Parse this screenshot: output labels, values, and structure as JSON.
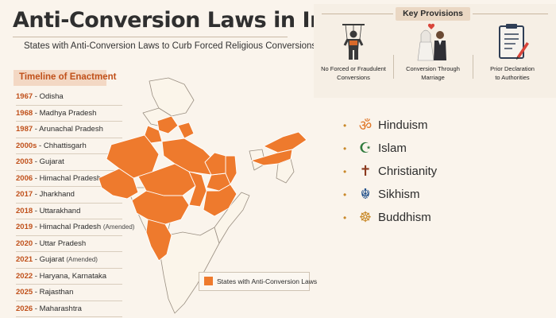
{
  "header": {
    "title": "Anti-Conversion Laws in India",
    "subtitle": "States with Anti-Conversion Laws to Curb Forced Religious Conversions"
  },
  "timeline": {
    "heading": "Timeline of Enactment",
    "entries": [
      {
        "year": "1967",
        "state": "Odisha",
        "note": ""
      },
      {
        "year": "1968",
        "state": "Madhya Pradesh",
        "note": ""
      },
      {
        "year": "1987",
        "state": "Arunachal Pradesh",
        "note": ""
      },
      {
        "year": "2000s",
        "state": "Chhattisgarh",
        "note": ""
      },
      {
        "year": "2003",
        "state": "Gujarat",
        "note": ""
      },
      {
        "year": "2006",
        "state": "Himachal Pradesh",
        "note": ""
      },
      {
        "year": "2017",
        "state": "Jharkhand",
        "note": ""
      },
      {
        "year": "2018",
        "state": "Uttarakhand",
        "note": ""
      },
      {
        "year": "2019",
        "state": "Himachal Pradesh",
        "note": "(Amended)"
      },
      {
        "year": "2020",
        "state": "Uttar Pradesh",
        "note": ""
      },
      {
        "year": "2021",
        "state": "Gujarat",
        "note": "(Amended)"
      },
      {
        "year": "2022",
        "state": "Haryana, Karnataka",
        "note": ""
      },
      {
        "year": "2025",
        "state": "Rajasthan",
        "note": ""
      },
      {
        "year": "2026",
        "state": "Maharashtra",
        "note": ""
      }
    ]
  },
  "map": {
    "legend_label": "States with Anti-Conversion Laws",
    "highlight_color": "#ee7a2d",
    "base_color": "#fbf5ea",
    "border_color": "#9a8f82"
  },
  "provisions": {
    "heading": "Key Provisions",
    "items": [
      {
        "icon": "puppet-figure-icon",
        "label_line1": "No Forced or Fraudulent",
        "label_line2": "Conversions"
      },
      {
        "icon": "couple-icon",
        "label_line1": "Conversion Through",
        "label_line2": "Marriage"
      },
      {
        "icon": "clipboard-form-icon",
        "label_line1": "Prior Declaration",
        "label_line2": "to Authorities"
      }
    ]
  },
  "religions": [
    {
      "name": "Hinduism",
      "icon": "om-icon",
      "glyph": "ॐ",
      "color": "#e0782a"
    },
    {
      "name": "Islam",
      "icon": "crescent-star-icon",
      "glyph": "☪",
      "color": "#2f7a3c"
    },
    {
      "name": "Christianity",
      "icon": "cross-icon",
      "glyph": "✝",
      "color": "#8b3a1e"
    },
    {
      "name": "Sikhism",
      "icon": "khanda-icon",
      "glyph": "☬",
      "color": "#1f4f8a"
    },
    {
      "name": "Buddhism",
      "icon": "dharma-wheel-icon",
      "glyph": "☸",
      "color": "#c98a2a"
    }
  ]
}
